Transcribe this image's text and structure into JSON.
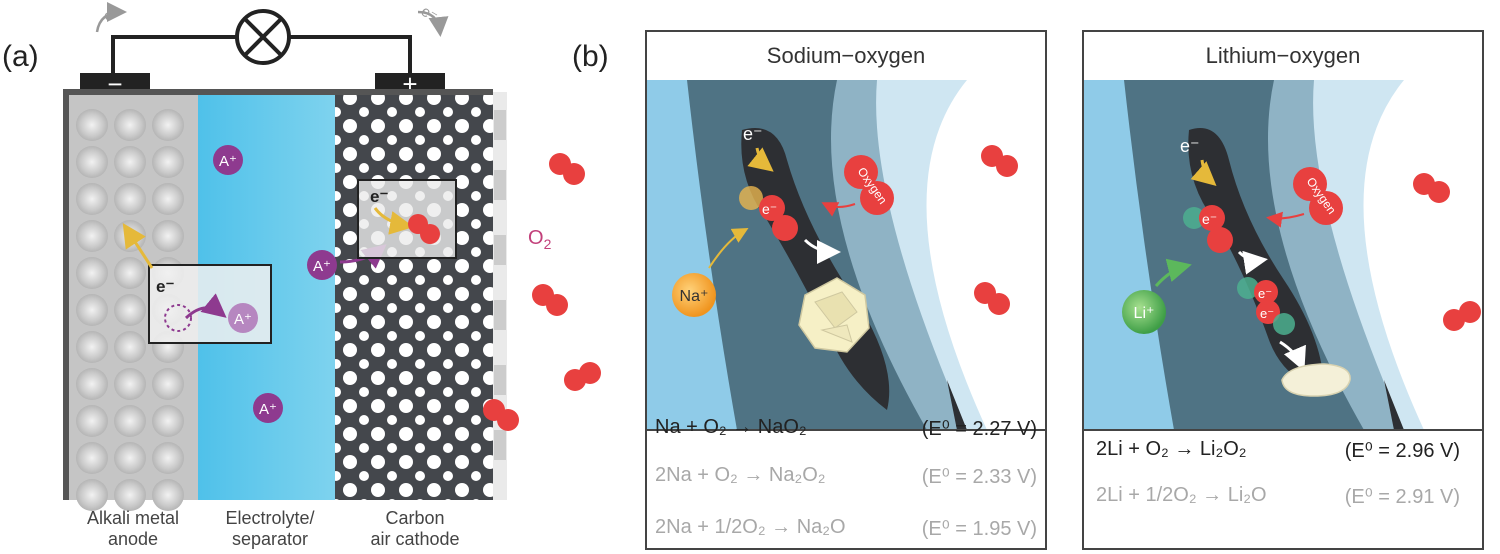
{
  "panel_a": {
    "label": "(a)",
    "electron_left": "e⁻",
    "electron_right": "e⁻",
    "minus_sign": "−",
    "plus_sign": "+",
    "ion": "A⁺",
    "electron": "e⁻",
    "o2_label": "O₂",
    "captions": {
      "anode_line1": "Alkali metal",
      "anode_line2": "anode",
      "electrolyte_line1": "Electrolyte/",
      "electrolyte_line2": "separator",
      "cathode_line1": "Carbon",
      "cathode_line2": "air cathode"
    }
  },
  "panel_b": {
    "label": "(b)",
    "sodium": {
      "title": "Sodium−oxygen",
      "electron": "e⁻",
      "oxygen_label": "Oxygen",
      "ion": "Na⁺",
      "equations": [
        {
          "left": "Na + O₂ →  NaO₂",
          "potential": "(E⁰ = 2.27 V)",
          "style": "dark"
        },
        {
          "left": "2Na + O₂ → Na₂O₂",
          "potential": "(E⁰ = 2.33 V)",
          "style": "grey"
        },
        {
          "left": "2Na + 1/2O₂ → Na₂O",
          "potential": "(E⁰ = 1.95 V)",
          "style": "grey"
        }
      ]
    },
    "lithium": {
      "title": "Lithium−oxygen",
      "electron": "e⁻",
      "oxygen_label": "Oxygen",
      "ion": "Li⁺",
      "equations": [
        {
          "left": "2Li + O₂ → Li₂O₂",
          "potential": "(E⁰ = 2.96 V)",
          "style": "dark"
        },
        {
          "left": "2Li + 1/2O₂ → Li₂O",
          "potential": "(E⁰ = 2.91 V)",
          "style": "grey"
        }
      ]
    }
  },
  "colors": {
    "ion_purple": "#8e3a8f",
    "oxygen_red": "#e8403f",
    "electrolyte_blue": "#5bc3e6",
    "carbon_dark": "#3c3f44",
    "electron_arrow": "#f0c44a",
    "sodium_orange": "#f5a623",
    "lithium_green": "#5cb85c"
  }
}
